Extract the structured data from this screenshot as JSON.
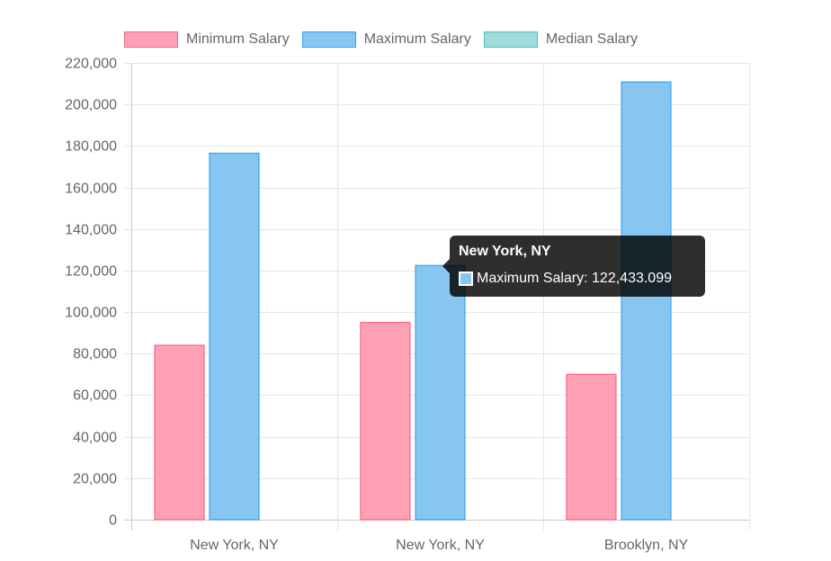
{
  "chart_data": {
    "type": "bar",
    "categories": [
      "New York, NY",
      "New York, NY",
      "Brooklyn, NY"
    ],
    "series": [
      {
        "name": "Minimum Salary",
        "values": [
          84000,
          95000,
          70000
        ],
        "color": "#ff6384",
        "fill": "#ffa0b4"
      },
      {
        "name": "Maximum Salary",
        "values": [
          176500,
          122433.099,
          210800
        ],
        "color": "#36a2eb",
        "fill": "#88c6f2"
      },
      {
        "name": "Median Salary",
        "values": [
          null,
          null,
          null
        ],
        "color": "#4bc0c0",
        "fill": "#9fdbdb"
      }
    ],
    "ylim": [
      0,
      220000
    ],
    "yticks": [
      "0",
      "20,000",
      "40,000",
      "60,000",
      "80,000",
      "100,000",
      "120,000",
      "140,000",
      "160,000",
      "180,000",
      "200,000",
      "220,000"
    ],
    "grid": true,
    "legend": "top"
  },
  "tooltip": {
    "title": "New York, NY",
    "body": "Maximum Salary: 122,433.099",
    "color": "#88c6f2"
  }
}
